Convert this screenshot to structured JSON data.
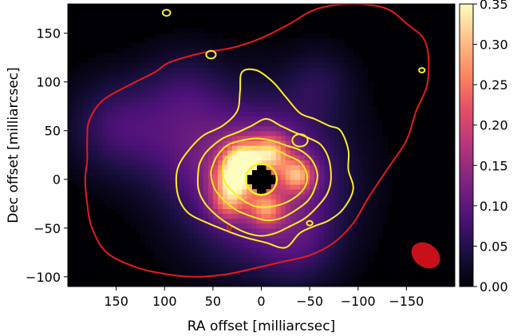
{
  "chart_data": {
    "type": "heatmap",
    "title": "",
    "xlabel": "RA offset [milliarcsec]",
    "ylabel": "Dec offset [milliarcsec]",
    "xlim": [
      200,
      -200
    ],
    "ylim": [
      -110,
      180
    ],
    "xticks": [
      150,
      100,
      50,
      0,
      -50,
      -100,
      -150
    ],
    "xtick_labels": [
      "150",
      "100",
      "50",
      "0",
      "−50",
      "−100",
      "−150"
    ],
    "yticks": [
      150,
      100,
      50,
      0,
      -50,
      -100
    ],
    "ytick_labels": [
      "150",
      "100",
      "50",
      "0",
      "−50",
      "−100"
    ],
    "colormap": "magma",
    "colorbar": {
      "range": [
        0.0,
        0.35
      ],
      "ticks": [
        0.0,
        0.05,
        0.1,
        0.15,
        0.2,
        0.25,
        0.3,
        0.35
      ],
      "tick_labels": [
        "0.00",
        "0.05",
        "0.10",
        "0.15",
        "0.20",
        "0.25",
        "0.30",
        "0.35"
      ]
    },
    "emission_components": [
      {
        "ra": 0,
        "dec": 0,
        "sigma": 55,
        "peak": 0.16
      },
      {
        "ra": 28,
        "dec": 0,
        "sigma": 14,
        "peak": 0.22
      },
      {
        "ra": 20,
        "dec": 22,
        "sigma": 13,
        "peak": 0.2
      },
      {
        "ra": -10,
        "dec": 28,
        "sigma": 13,
        "peak": 0.18
      },
      {
        "ra": -38,
        "dec": 5,
        "sigma": 12,
        "peak": 0.18
      },
      {
        "ra": -5,
        "dec": -30,
        "sigma": 12,
        "peak": 0.14
      },
      {
        "ra": 35,
        "dec": -25,
        "sigma": 12,
        "peak": 0.12
      },
      {
        "ra": 150,
        "dec": 55,
        "sigma": 35,
        "peak": 0.07
      },
      {
        "ra": 80,
        "dec": 40,
        "sigma": 40,
        "peak": 0.05
      },
      {
        "ra": 80,
        "dec": 95,
        "sigma": 30,
        "peak": 0.04
      },
      {
        "ra": -60,
        "dec": 100,
        "sigma": 25,
        "peak": 0.04
      },
      {
        "ra": -40,
        "dec": -70,
        "sigma": 30,
        "peak": 0.04
      }
    ],
    "central_hole": {
      "ra": 0,
      "dec": 0,
      "radius": 13
    },
    "outer_contour": {
      "color": "#e8191c",
      "points": [
        [
          178,
          60
        ],
        [
          165,
          80
        ],
        [
          140,
          95
        ],
        [
          110,
          110
        ],
        [
          95,
          120
        ],
        [
          60,
          130
        ],
        [
          30,
          135
        ],
        [
          0,
          145
        ],
        [
          -30,
          160
        ],
        [
          -50,
          172
        ],
        [
          -70,
          178
        ],
        [
          -100,
          180
        ],
        [
          -130,
          175
        ],
        [
          -150,
          160
        ],
        [
          -170,
          140
        ],
        [
          -172,
          100
        ],
        [
          -160,
          70
        ],
        [
          -150,
          40
        ],
        [
          -130,
          10
        ],
        [
          -110,
          -20
        ],
        [
          -95,
          -45
        ],
        [
          -75,
          -65
        ],
        [
          -50,
          -78
        ],
        [
          -20,
          -85
        ],
        [
          10,
          -92
        ],
        [
          40,
          -98
        ],
        [
          70,
          -100
        ],
        [
          100,
          -97
        ],
        [
          130,
          -90
        ],
        [
          160,
          -75
        ],
        [
          175,
          -50
        ],
        [
          180,
          -25
        ],
        [
          182,
          0
        ],
        [
          180,
          20
        ],
        [
          180,
          40
        ]
      ],
      "islands": [
        {
          "ra": 33,
          "dec": -49,
          "r": 2
        }
      ]
    },
    "inner_contours": {
      "color": "#fdee21",
      "levels": [
        [
          [
            60,
            45
          ],
          [
            40,
            55
          ],
          [
            25,
            70
          ],
          [
            22,
            90
          ],
          [
            20,
            110
          ],
          [
            5,
            112
          ],
          [
            -12,
            100
          ],
          [
            -25,
            85
          ],
          [
            -40,
            68
          ],
          [
            -55,
            62
          ],
          [
            -70,
            55
          ],
          [
            -82,
            50
          ],
          [
            -90,
            30
          ],
          [
            -90,
            10
          ],
          [
            -95,
            -10
          ],
          [
            -85,
            -30
          ],
          [
            -70,
            -42
          ],
          [
            -55,
            -48
          ],
          [
            -40,
            -55
          ],
          [
            -25,
            -70
          ],
          [
            -5,
            -65
          ],
          [
            15,
            -60
          ],
          [
            30,
            -55
          ],
          [
            55,
            -45
          ],
          [
            75,
            -35
          ],
          [
            85,
            -20
          ],
          [
            88,
            0
          ],
          [
            85,
            15
          ],
          [
            75,
            30
          ]
        ],
        [
          [
            55,
            30
          ],
          [
            40,
            42
          ],
          [
            25,
            48
          ],
          [
            10,
            55
          ],
          [
            -5,
            62
          ],
          [
            -20,
            55
          ],
          [
            -35,
            48
          ],
          [
            -50,
            42
          ],
          [
            -62,
            35
          ],
          [
            -70,
            20
          ],
          [
            -72,
            0
          ],
          [
            -68,
            -15
          ],
          [
            -58,
            -28
          ],
          [
            -45,
            -40
          ],
          [
            -30,
            -48
          ],
          [
            -15,
            -55
          ],
          [
            0,
            -58
          ],
          [
            15,
            -55
          ],
          [
            30,
            -48
          ],
          [
            45,
            -38
          ],
          [
            58,
            -25
          ],
          [
            65,
            -10
          ],
          [
            65,
            10
          ],
          [
            62,
            20
          ]
        ],
        [
          [
            45,
            25
          ],
          [
            35,
            35
          ],
          [
            20,
            40
          ],
          [
            5,
            42
          ],
          [
            -10,
            40
          ],
          [
            -25,
            35
          ],
          [
            -40,
            30
          ],
          [
            -52,
            20
          ],
          [
            -58,
            5
          ],
          [
            -55,
            -10
          ],
          [
            -48,
            -22
          ],
          [
            -35,
            -32
          ],
          [
            -20,
            -40
          ],
          [
            -5,
            -42
          ],
          [
            10,
            -38
          ],
          [
            25,
            -32
          ],
          [
            38,
            -22
          ],
          [
            48,
            -10
          ],
          [
            52,
            5
          ],
          [
            50,
            15
          ]
        ],
        [
          [
            38,
            20
          ],
          [
            28,
            28
          ],
          [
            15,
            32
          ],
          [
            0,
            33
          ],
          [
            -15,
            30
          ],
          [
            -28,
            24
          ],
          [
            -40,
            18
          ],
          [
            -47,
            6
          ],
          [
            -46,
            -6
          ],
          [
            -38,
            -16
          ],
          [
            -25,
            -24
          ],
          [
            -10,
            -28
          ],
          [
            5,
            -28
          ],
          [
            18,
            -22
          ],
          [
            30,
            -12
          ],
          [
            38,
            -2
          ],
          [
            40,
            10
          ]
        ]
      ],
      "islands": [
        {
          "ra": -40,
          "dec": 40,
          "r": 8
        },
        {
          "ra": 52,
          "dec": 128,
          "r": 5
        },
        {
          "ra": 98,
          "dec": 171,
          "r": 4
        },
        {
          "ra": -166,
          "dec": 112,
          "r": 3
        },
        {
          "ra": -50,
          "dec": -45,
          "r": 3
        }
      ]
    },
    "beam": {
      "ra": -170,
      "dec": -78,
      "major": 16,
      "minor": 12,
      "color": "#c8101a"
    }
  }
}
